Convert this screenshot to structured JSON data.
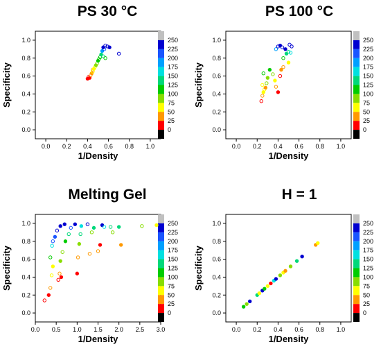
{
  "chart_data": [
    {
      "type": "scatter",
      "title": "PS 30 °C",
      "xlabel": "1/Density",
      "ylabel": "Specificity",
      "xlim": [
        -0.1,
        1.1
      ],
      "ylim": [
        -0.1,
        1.1
      ],
      "xticks": [
        "0.0",
        "0.2",
        "0.4",
        "0.6",
        "0.8",
        "1.0"
      ],
      "yticks": [
        "0.0",
        "0.2",
        "0.4",
        "0.6",
        "0.8",
        "1.0"
      ],
      "points": [
        {
          "x": 0.4,
          "y": 0.57,
          "v": 15,
          "filled": true
        },
        {
          "x": 0.41,
          "y": 0.59,
          "v": 20,
          "filled": false
        },
        {
          "x": 0.42,
          "y": 0.58,
          "v": 10,
          "filled": true
        },
        {
          "x": 0.43,
          "y": 0.61,
          "v": 30,
          "filled": false
        },
        {
          "x": 0.44,
          "y": 0.63,
          "v": 40,
          "filled": true
        },
        {
          "x": 0.45,
          "y": 0.65,
          "v": 50,
          "filled": false
        },
        {
          "x": 0.45,
          "y": 0.67,
          "v": 35,
          "filled": false
        },
        {
          "x": 0.46,
          "y": 0.68,
          "v": 60,
          "filled": true
        },
        {
          "x": 0.47,
          "y": 0.7,
          "v": 70,
          "filled": false
        },
        {
          "x": 0.48,
          "y": 0.72,
          "v": 80,
          "filled": true
        },
        {
          "x": 0.49,
          "y": 0.74,
          "v": 90,
          "filled": false
        },
        {
          "x": 0.5,
          "y": 0.77,
          "v": 100,
          "filled": true
        },
        {
          "x": 0.51,
          "y": 0.79,
          "v": 110,
          "filled": false
        },
        {
          "x": 0.52,
          "y": 0.81,
          "v": 120,
          "filled": false
        },
        {
          "x": 0.53,
          "y": 0.84,
          "v": 130,
          "filled": true
        },
        {
          "x": 0.55,
          "y": 0.82,
          "v": 125,
          "filled": false
        },
        {
          "x": 0.57,
          "y": 0.8,
          "v": 115,
          "filled": false
        },
        {
          "x": 0.54,
          "y": 0.88,
          "v": 175,
          "filled": true
        },
        {
          "x": 0.56,
          "y": 0.9,
          "v": 200,
          "filled": false
        },
        {
          "x": 0.55,
          "y": 0.92,
          "v": 225,
          "filled": true
        },
        {
          "x": 0.57,
          "y": 0.94,
          "v": 240,
          "filled": false
        },
        {
          "x": 0.59,
          "y": 0.93,
          "v": 230,
          "filled": false
        },
        {
          "x": 0.61,
          "y": 0.92,
          "v": 245,
          "filled": true
        },
        {
          "x": 0.7,
          "y": 0.85,
          "v": 240,
          "filled": false
        }
      ]
    },
    {
      "type": "scatter",
      "title": "PS 100 °C",
      "xlabel": "1/Density",
      "ylabel": "Specificity",
      "xlim": [
        -0.1,
        1.1
      ],
      "ylim": [
        -0.1,
        1.1
      ],
      "xticks": [
        "0.0",
        "0.2",
        "0.4",
        "0.6",
        "0.8",
        "1.0"
      ],
      "yticks": [
        "0.0",
        "0.2",
        "0.4",
        "0.6",
        "0.8",
        "1.0"
      ],
      "points": [
        {
          "x": 0.24,
          "y": 0.32,
          "v": 20,
          "filled": false
        },
        {
          "x": 0.25,
          "y": 0.38,
          "v": 30,
          "filled": false
        },
        {
          "x": 0.26,
          "y": 0.42,
          "v": 50,
          "filled": true
        },
        {
          "x": 0.27,
          "y": 0.45,
          "v": 55,
          "filled": false
        },
        {
          "x": 0.25,
          "y": 0.5,
          "v": 70,
          "filled": false
        },
        {
          "x": 0.28,
          "y": 0.47,
          "v": 40,
          "filled": true
        },
        {
          "x": 0.29,
          "y": 0.52,
          "v": 75,
          "filled": false
        },
        {
          "x": 0.3,
          "y": 0.58,
          "v": 90,
          "filled": true
        },
        {
          "x": 0.26,
          "y": 0.63,
          "v": 110,
          "filled": false
        },
        {
          "x": 0.32,
          "y": 0.67,
          "v": 120,
          "filled": true
        },
        {
          "x": 0.35,
          "y": 0.62,
          "v": 80,
          "filled": false
        },
        {
          "x": 0.37,
          "y": 0.55,
          "v": 60,
          "filled": true
        },
        {
          "x": 0.38,
          "y": 0.48,
          "v": 30,
          "filled": false
        },
        {
          "x": 0.4,
          "y": 0.42,
          "v": 15,
          "filled": true
        },
        {
          "x": 0.42,
          "y": 0.6,
          "v": 20,
          "filled": false
        },
        {
          "x": 0.43,
          "y": 0.67,
          "v": 25,
          "filled": true
        },
        {
          "x": 0.45,
          "y": 0.7,
          "v": 40,
          "filled": false
        },
        {
          "x": 0.5,
          "y": 0.75,
          "v": 65,
          "filled": true
        },
        {
          "x": 0.45,
          "y": 0.8,
          "v": 100,
          "filled": false
        },
        {
          "x": 0.48,
          "y": 0.85,
          "v": 130,
          "filled": true
        },
        {
          "x": 0.5,
          "y": 0.87,
          "v": 140,
          "filled": false
        },
        {
          "x": 0.52,
          "y": 0.86,
          "v": 150,
          "filled": false
        },
        {
          "x": 0.38,
          "y": 0.9,
          "v": 175,
          "filled": false
        },
        {
          "x": 0.4,
          "y": 0.93,
          "v": 235,
          "filled": false
        },
        {
          "x": 0.42,
          "y": 0.94,
          "v": 240,
          "filled": true
        },
        {
          "x": 0.44,
          "y": 0.92,
          "v": 230,
          "filled": false
        },
        {
          "x": 0.47,
          "y": 0.9,
          "v": 240,
          "filled": true
        },
        {
          "x": 0.51,
          "y": 0.95,
          "v": 245,
          "filled": false
        },
        {
          "x": 0.53,
          "y": 0.93,
          "v": 240,
          "filled": false
        }
      ]
    },
    {
      "type": "scatter",
      "title": "Melting Gel",
      "xlabel": "1/Density",
      "ylabel": "Specificity",
      "xlim": [
        0.0,
        3.0
      ],
      "ylim": [
        -0.1,
        1.1
      ],
      "xticks": [
        "0.0",
        "0.5",
        "1.0",
        "1.5",
        "2.0",
        "2.5",
        "3.0"
      ],
      "yticks": [
        "0.0",
        "0.2",
        "0.4",
        "0.6",
        "0.8",
        "1.0"
      ],
      "points": [
        {
          "x": 0.22,
          "y": 0.14,
          "v": 20,
          "filled": false
        },
        {
          "x": 0.32,
          "y": 0.2,
          "v": 15,
          "filled": true
        },
        {
          "x": 0.36,
          "y": 0.28,
          "v": 35,
          "filled": false
        },
        {
          "x": 0.39,
          "y": 0.42,
          "v": 55,
          "filled": false
        },
        {
          "x": 0.42,
          "y": 0.52,
          "v": 60,
          "filled": true
        },
        {
          "x": 0.36,
          "y": 0.62,
          "v": 110,
          "filled": false
        },
        {
          "x": 0.4,
          "y": 0.75,
          "v": 150,
          "filled": false
        },
        {
          "x": 0.42,
          "y": 0.8,
          "v": 200,
          "filled": false
        },
        {
          "x": 0.47,
          "y": 0.85,
          "v": 215,
          "filled": true
        },
        {
          "x": 0.52,
          "y": 0.92,
          "v": 235,
          "filled": false
        },
        {
          "x": 0.6,
          "y": 0.97,
          "v": 240,
          "filled": true
        },
        {
          "x": 0.7,
          "y": 0.99,
          "v": 245,
          "filled": true
        },
        {
          "x": 0.55,
          "y": 0.37,
          "v": 20,
          "filled": false
        },
        {
          "x": 0.58,
          "y": 0.44,
          "v": 40,
          "filled": false
        },
        {
          "x": 0.62,
          "y": 0.4,
          "v": 15,
          "filled": true
        },
        {
          "x": 0.6,
          "y": 0.58,
          "v": 80,
          "filled": true
        },
        {
          "x": 0.65,
          "y": 0.68,
          "v": 90,
          "filled": false
        },
        {
          "x": 0.72,
          "y": 0.8,
          "v": 120,
          "filled": true
        },
        {
          "x": 0.8,
          "y": 0.88,
          "v": 130,
          "filled": false
        },
        {
          "x": 0.85,
          "y": 0.95,
          "v": 200,
          "filled": false
        },
        {
          "x": 0.95,
          "y": 0.99,
          "v": 240,
          "filled": true
        },
        {
          "x": 1.0,
          "y": 0.44,
          "v": 15,
          "filled": true
        },
        {
          "x": 1.02,
          "y": 0.62,
          "v": 45,
          "filled": false
        },
        {
          "x": 1.05,
          "y": 0.77,
          "v": 85,
          "filled": true
        },
        {
          "x": 1.08,
          "y": 0.88,
          "v": 125,
          "filled": false
        },
        {
          "x": 1.1,
          "y": 0.97,
          "v": 150,
          "filled": true
        },
        {
          "x": 1.25,
          "y": 0.99,
          "v": 230,
          "filled": false
        },
        {
          "x": 1.3,
          "y": 0.66,
          "v": 40,
          "filled": false
        },
        {
          "x": 1.35,
          "y": 0.9,
          "v": 90,
          "filled": false
        },
        {
          "x": 1.4,
          "y": 0.95,
          "v": 140,
          "filled": true
        },
        {
          "x": 1.5,
          "y": 0.69,
          "v": 35,
          "filled": false
        },
        {
          "x": 1.55,
          "y": 0.76,
          "v": 20,
          "filled": true
        },
        {
          "x": 1.6,
          "y": 0.98,
          "v": 245,
          "filled": true
        },
        {
          "x": 1.65,
          "y": 0.96,
          "v": 150,
          "filled": false
        },
        {
          "x": 1.8,
          "y": 0.96,
          "v": 130,
          "filled": false
        },
        {
          "x": 1.85,
          "y": 0.9,
          "v": 75,
          "filled": false
        },
        {
          "x": 2.0,
          "y": 0.96,
          "v": 140,
          "filled": true
        },
        {
          "x": 2.05,
          "y": 0.76,
          "v": 40,
          "filled": true
        },
        {
          "x": 2.55,
          "y": 0.97,
          "v": 75,
          "filled": false
        },
        {
          "x": 2.9,
          "y": 0.98,
          "v": 70,
          "filled": true
        }
      ]
    },
    {
      "type": "scatter",
      "title": "H = 1",
      "xlabel": "1/Density",
      "ylabel": "Specificity",
      "xlim": [
        -0.1,
        1.1
      ],
      "ylim": [
        -0.1,
        1.1
      ],
      "xticks": [
        "0.0",
        "0.2",
        "0.4",
        "0.6",
        "0.8",
        "1.0"
      ],
      "yticks": [
        "0.0",
        "0.2",
        "0.4",
        "0.6",
        "0.8",
        "1.0"
      ],
      "points": [
        {
          "x": 0.07,
          "y": 0.07,
          "v": 110,
          "filled": true
        },
        {
          "x": 0.1,
          "y": 0.1,
          "v": 75,
          "filled": true
        },
        {
          "x": 0.13,
          "y": 0.13,
          "v": 230,
          "filled": true
        },
        {
          "x": 0.2,
          "y": 0.2,
          "v": 140,
          "filled": true
        },
        {
          "x": 0.22,
          "y": 0.22,
          "v": 50,
          "filled": true
        },
        {
          "x": 0.25,
          "y": 0.25,
          "v": 240,
          "filled": true
        },
        {
          "x": 0.27,
          "y": 0.27,
          "v": 120,
          "filled": true
        },
        {
          "x": 0.3,
          "y": 0.3,
          "v": 60,
          "filled": true
        },
        {
          "x": 0.33,
          "y": 0.33,
          "v": 15,
          "filled": true
        },
        {
          "x": 0.36,
          "y": 0.36,
          "v": 150,
          "filled": true
        },
        {
          "x": 0.38,
          "y": 0.38,
          "v": 230,
          "filled": true
        },
        {
          "x": 0.42,
          "y": 0.42,
          "v": 80,
          "filled": true
        },
        {
          "x": 0.45,
          "y": 0.45,
          "v": 70,
          "filled": true
        },
        {
          "x": 0.47,
          "y": 0.47,
          "v": 35,
          "filled": true
        },
        {
          "x": 0.52,
          "y": 0.52,
          "v": 90,
          "filled": true
        },
        {
          "x": 0.58,
          "y": 0.58,
          "v": 140,
          "filled": true
        },
        {
          "x": 0.63,
          "y": 0.63,
          "v": 240,
          "filled": true
        },
        {
          "x": 0.76,
          "y": 0.76,
          "v": 25,
          "filled": true
        },
        {
          "x": 0.78,
          "y": 0.78,
          "v": 60,
          "filled": true
        }
      ]
    }
  ],
  "colorbar": {
    "labels": [
      "250",
      "225",
      "200",
      "175",
      "150",
      "125",
      "100",
      "75",
      "50",
      "25",
      "0"
    ],
    "colors": [
      "#c0c0c0",
      "#0000d0",
      "#1a55ff",
      "#00a0ff",
      "#00e0e0",
      "#00d87a",
      "#00cc00",
      "#88dd00",
      "#ffff00",
      "#ff9900",
      "#ff0000",
      "#000000"
    ]
  }
}
